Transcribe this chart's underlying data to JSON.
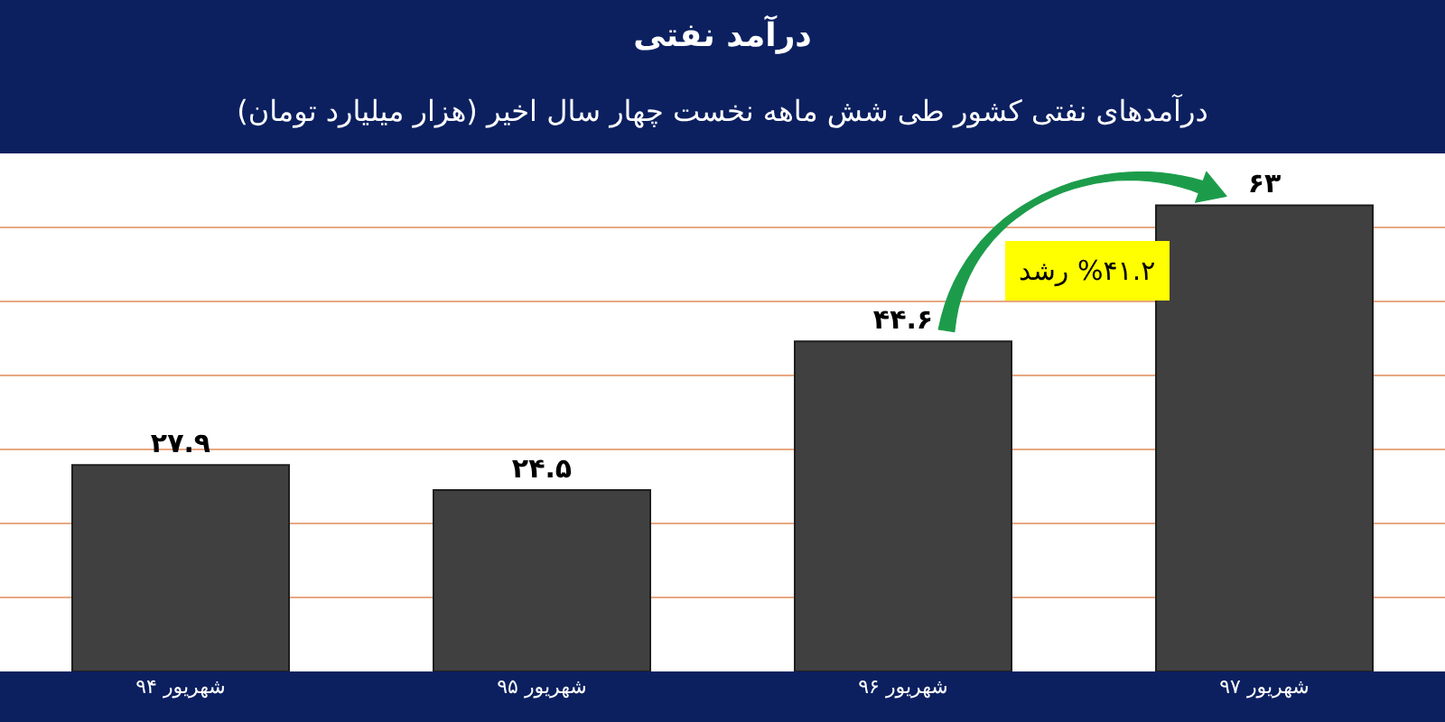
{
  "chart_data": {
    "type": "bar",
    "title": "درآمد نفتی",
    "subtitle": "درآمدهای نفتی کشور طی شش ماهه نخست چهار سال اخیر (هزار میلیارد تومان)",
    "categories": [
      "شهریور ۹۴",
      "شهریور ۹۵",
      "شهریور ۹۶",
      "شهریور ۹۷"
    ],
    "values": [
      27.9,
      24.5,
      44.6,
      63
    ],
    "value_labels": [
      "۲۷.۹",
      "۲۴.۵",
      "۴۴.۶",
      "۶۳"
    ],
    "color": "#404040",
    "ylim": [
      0,
      70
    ],
    "yticks": [
      {
        "value": 10,
        "label": null
      },
      {
        "value": 20,
        "label": null
      },
      {
        "value": 30,
        "label": null
      },
      {
        "value": 40,
        "label": null
      },
      {
        "value": 50,
        "label": null
      },
      {
        "value": 60,
        "label": null
      }
    ],
    "grid": "y",
    "tick_labels": "x",
    "annotations": [
      "%۴۱.۲ رشد"
    ]
  }
}
